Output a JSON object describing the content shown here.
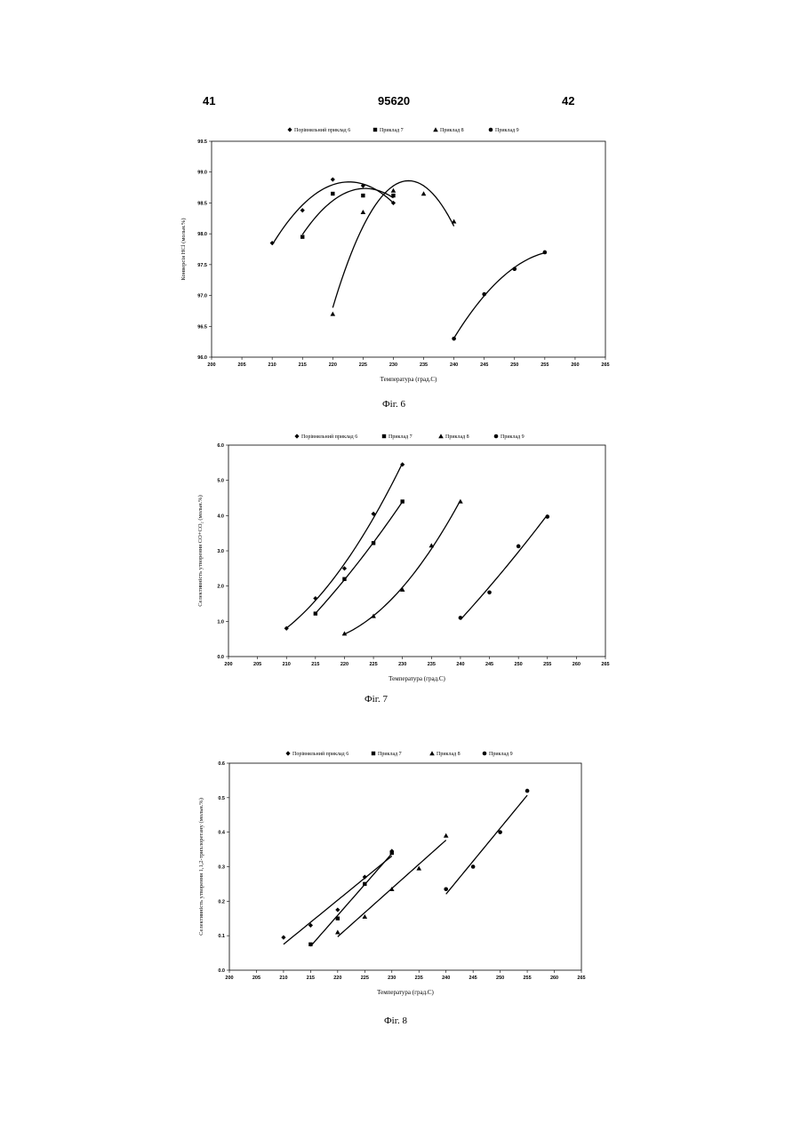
{
  "header": {
    "left_page": "41",
    "patent_number": "95620",
    "right_page": "42"
  },
  "captions": [
    "Фіг. 6",
    "Фіг. 7",
    "Фіг. 8"
  ],
  "colors": {
    "ink": "#000000",
    "background": "#ffffff"
  },
  "chart_data": [
    {
      "type": "scatter",
      "trendlines": "polynomial",
      "legend": {
        "placement": "top",
        "entries": [
          {
            "label": "Порівняльний приклад 6",
            "marker": "diamond"
          },
          {
            "label": "Приклад 7",
            "marker": "square"
          },
          {
            "label": "Приклад 8",
            "marker": "triangle"
          },
          {
            "label": "Приклад 9",
            "marker": "circle"
          }
        ]
      },
      "xlabel": "Температура (град.С)",
      "ylabel": "Конверсія HCl (мольн.%)",
      "xlim": [
        200,
        265
      ],
      "ylim": [
        96.0,
        99.5
      ],
      "xticks": [
        "200",
        "205",
        "210",
        "215",
        "220",
        "225",
        "230",
        "235",
        "240",
        "245",
        "250",
        "255",
        "260",
        "265"
      ],
      "yticks": [
        "96.0",
        "96.5",
        "97.0",
        "97.5",
        "98.0",
        "98.5",
        "99.0",
        "99.5"
      ],
      "series": [
        {
          "x": [
            210,
            215,
            220,
            225,
            230
          ],
          "y": [
            97.85,
            98.38,
            98.88,
            98.78,
            98.5
          ]
        },
        {
          "x": [
            215,
            220,
            225,
            230
          ],
          "y": [
            97.95,
            98.65,
            98.62,
            98.62
          ]
        },
        {
          "x": [
            220,
            225,
            230,
            235,
            240
          ],
          "y": [
            96.7,
            98.35,
            98.7,
            98.65,
            98.2
          ]
        },
        {
          "x": [
            240,
            245,
            250,
            255
          ],
          "y": [
            96.3,
            97.02,
            97.43,
            97.7
          ]
        }
      ]
    },
    {
      "type": "scatter",
      "trendlines": "polynomial",
      "legend": {
        "placement": "top",
        "entries": [
          {
            "label": "Порівняльний приклад 6",
            "marker": "diamond"
          },
          {
            "label": "Приклад 7",
            "marker": "square"
          },
          {
            "label": "Приклад 8",
            "marker": "triangle"
          },
          {
            "label": "Приклад 9",
            "marker": "circle"
          }
        ]
      },
      "xlabel": "Температура (град.С)",
      "ylabel": "Селективність утворення CO+CO₂ (мольн.%)",
      "xlim": [
        200,
        265
      ],
      "ylim": [
        0.0,
        6.0
      ],
      "xticks": [
        "200",
        "205",
        "210",
        "215",
        "220",
        "225",
        "230",
        "235",
        "240",
        "245",
        "250",
        "255",
        "260",
        "265"
      ],
      "yticks": [
        "0.0",
        "1.0",
        "2.0",
        "3.0",
        "4.0",
        "5.0",
        "6.0"
      ],
      "series": [
        {
          "x": [
            210,
            215,
            220,
            225,
            230
          ],
          "y": [
            0.8,
            1.65,
            2.5,
            4.05,
            5.45
          ]
        },
        {
          "x": [
            215,
            220,
            225,
            230
          ],
          "y": [
            1.22,
            2.2,
            3.22,
            4.4
          ]
        },
        {
          "x": [
            220,
            225,
            230,
            235,
            240
          ],
          "y": [
            0.65,
            1.15,
            1.9,
            3.15,
            4.4
          ]
        },
        {
          "x": [
            240,
            245,
            250,
            255
          ],
          "y": [
            1.1,
            1.82,
            3.13,
            3.97
          ]
        }
      ]
    },
    {
      "type": "scatter",
      "trendlines": "linear",
      "legend": {
        "placement": "top",
        "entries": [
          {
            "label": "Порівняльний приклад 6",
            "marker": "diamond"
          },
          {
            "label": "Приклад 7",
            "marker": "square"
          },
          {
            "label": "Приклад 8",
            "marker": "triangle"
          },
          {
            "label": "Приклад 9",
            "marker": "circle"
          }
        ]
      },
      "xlabel": "Температура (град.С)",
      "ylabel": "Селективність утворення 1,1,2-трихлоретану (мольн.%)",
      "xlim": [
        200,
        265
      ],
      "ylim": [
        0.0,
        0.6
      ],
      "xticks": [
        "200",
        "205",
        "210",
        "215",
        "220",
        "225",
        "230",
        "235",
        "240",
        "245",
        "250",
        "255",
        "260",
        "265"
      ],
      "yticks": [
        "0.0",
        "0.1",
        "0.2",
        "0.3",
        "0.4",
        "0.5",
        "0.6"
      ],
      "series": [
        {
          "x": [
            210,
            215,
            220,
            225,
            230
          ],
          "y": [
            0.095,
            0.13,
            0.175,
            0.27,
            0.345
          ]
        },
        {
          "x": [
            215,
            220,
            225,
            230
          ],
          "y": [
            0.075,
            0.15,
            0.25,
            0.34
          ]
        },
        {
          "x": [
            220,
            225,
            230,
            235,
            240
          ],
          "y": [
            0.11,
            0.155,
            0.235,
            0.295,
            0.39
          ]
        },
        {
          "x": [
            240,
            245,
            250,
            255
          ],
          "y": [
            0.235,
            0.3,
            0.4,
            0.52
          ]
        }
      ]
    }
  ]
}
